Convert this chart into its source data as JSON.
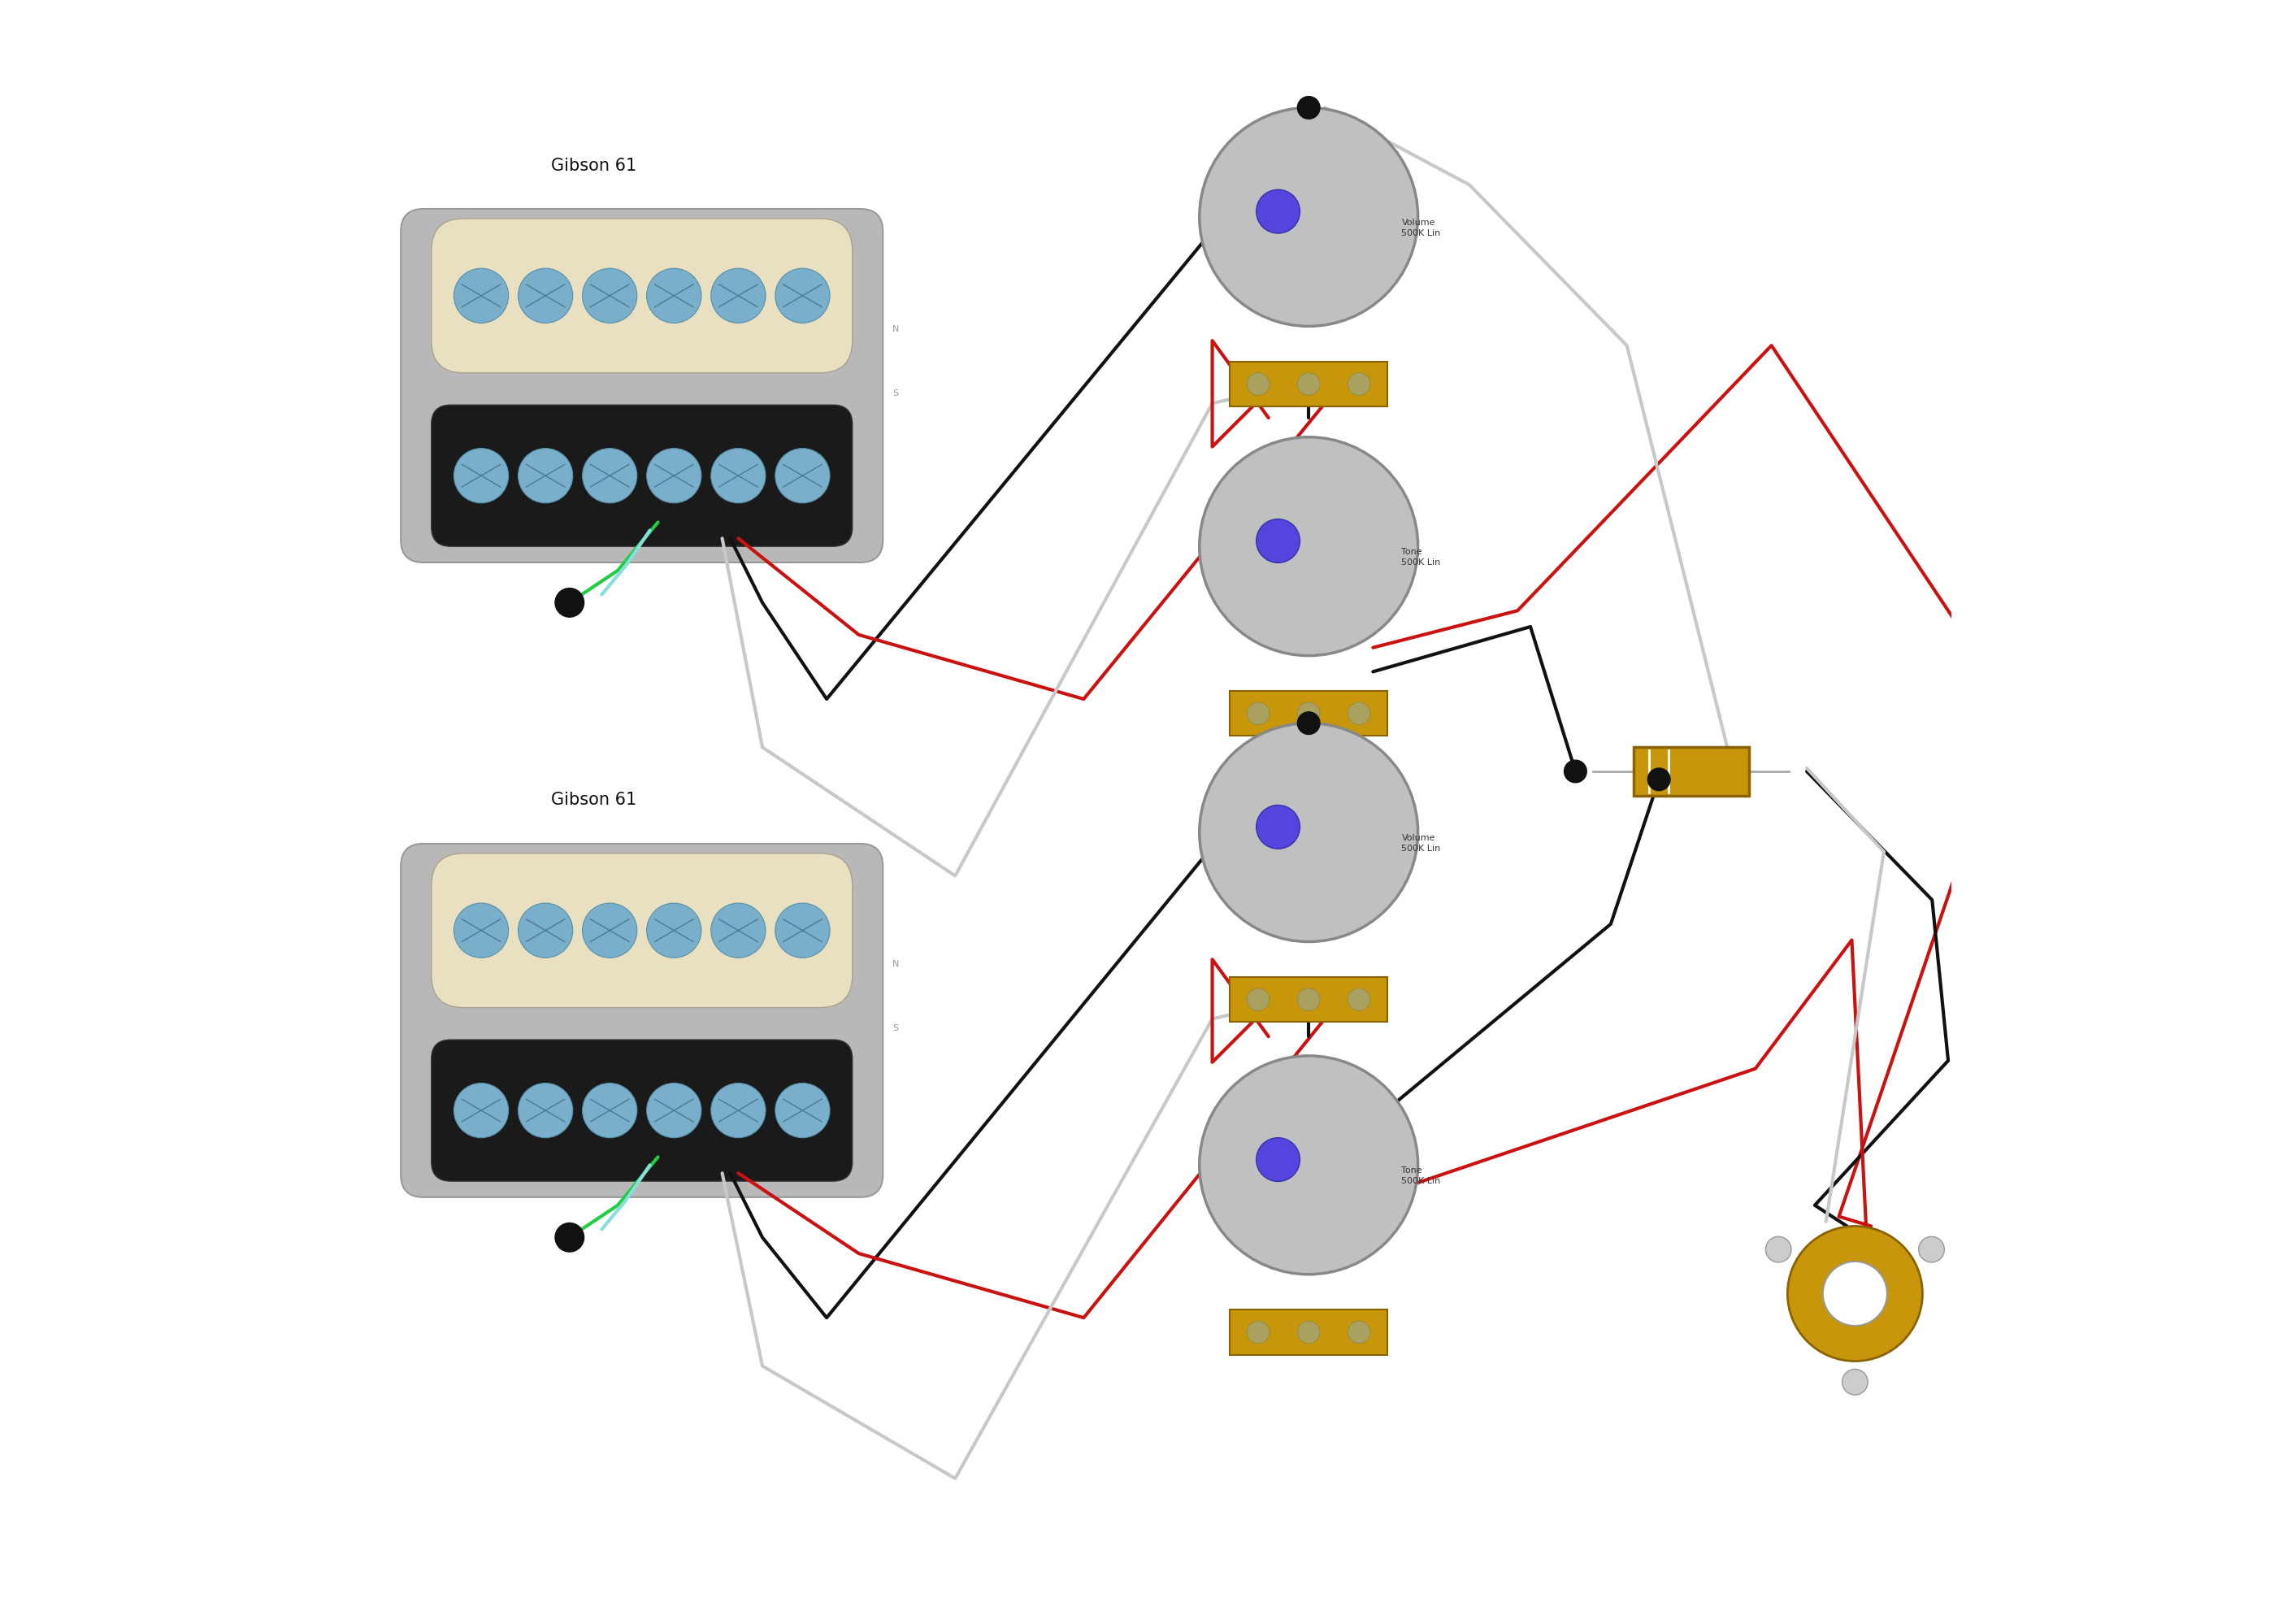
{
  "bg_color": "#ffffff",
  "pickup_label": "Gibson 61",
  "pickup_cream_color": "#e8e0c0",
  "pickup_black_color": "#1a1a1a",
  "pickup_mount_color": "#b8b8b8",
  "pickup_screw_color": "#7aafcc",
  "pot_color": "#c0c0c0",
  "pot_label_vol": "Volume\n500K Lin",
  "pot_label_tone": "Tone\n500K Lin",
  "cap_color": "#c8960a",
  "jack_color": "#c8960a",
  "black": "#111111",
  "red": "#cc1111",
  "gray": "#c8c8c8",
  "green": "#22cc44",
  "cyan": "#88dddd"
}
